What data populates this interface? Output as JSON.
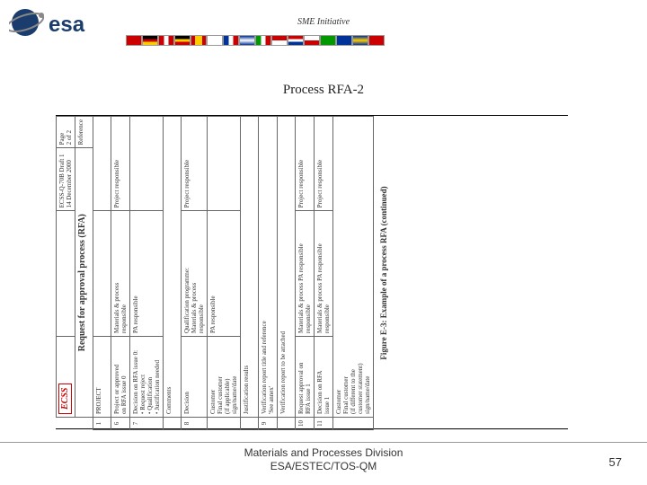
{
  "header": {
    "sme": "SME Initiative",
    "flags": [
      "#cc0000",
      "linear-gradient(#000 33%,#cc0000 33% 66%,#ffcc00 66%)",
      "linear-gradient(to right,#cc0000 33%,#fff 33% 66%,#cc0000 66%)",
      "linear-gradient(#000 33%,#ffcc00 33% 66%,#cc0000 66%)",
      "linear-gradient(to right,#cc0000 25%,#ffcc00 25% 75%,#cc0000 75%)",
      "#fff",
      "linear-gradient(to right,#003399 33%,#fff 33% 66%,#cc0000 66%)",
      "linear-gradient(#003399,#fff,#003399)",
      "linear-gradient(to right,#009900 33%,#fff 33% 66%,#cc0000 66%)",
      "linear-gradient(#cc0000 50%,#fff 50%)",
      "linear-gradient(#cc0000 33%,#fff 33% 66%,#003399 66%)",
      "linear-gradient(#fff 50%,#cc0000 50%)",
      "#009900",
      "#003399",
      "linear-gradient(#003399,#ffcc00,#003399)",
      "#cc0000"
    ]
  },
  "title": "Process RFA-2",
  "form": {
    "logo": "ECSS",
    "docref": "ECSS-Q-70B Draft 1\n14 December 2000",
    "page": "Page\n2 of 2",
    "heading": "Request for approval process (RFA)",
    "reference": "Reference",
    "rows": [
      {
        "n": "1",
        "left": "PROJECT",
        "right": ""
      },
      {
        "n": "6",
        "left": "Project or approved\non RFA issue 0",
        "mid": "Materials & process\nresponsible",
        "right": "Project responsible"
      },
      {
        "n": "7",
        "left": "Decision on RFA issue 0:\n• Request reject\n• Qualification\n• Justification needed",
        "mid": "PA responsible",
        "right": ""
      },
      {
        "n": "",
        "left": "Comments",
        "mid": "",
        "right": ""
      },
      {
        "n": "8",
        "left": "Decision",
        "mid": "Qualification programme:\nMaterials & process\nresponsible",
        "right": "Project responsible"
      },
      {
        "n": "",
        "left": "Customer\nFinal customer\n(if applicable)\nsign/name/date",
        "mid": "PA responsible",
        "right": ""
      },
      {
        "n": "",
        "left": "Justification results",
        "mid": "",
        "right": ""
      },
      {
        "n": "9",
        "left": "Verification report title and reference\n'See annex'",
        "mid": "",
        "right": ""
      },
      {
        "n": "",
        "left": "Verification report to be attached",
        "mid": "",
        "right": ""
      },
      {
        "n": "10",
        "left": "Request approval on\nRFA issue 1",
        "mid": "Materials & process PA responsible\nresponsible",
        "right": "Project responsible"
      },
      {
        "n": "11",
        "left": "Decision on RFA\nissue 1",
        "mid": "Materials & process PA responsible\nresponsible",
        "right": "Project responsible"
      },
      {
        "n": "",
        "left": "Customer\nFinal customer\n(if different to the\ncustomer statement)\nsign/name/date",
        "mid": "",
        "right": ""
      }
    ],
    "caption": "Figure E-3: Example of a process RFA (continued)"
  },
  "footer": {
    "line1": "Materials and Processes Division",
    "line2": "ESA/ESTEC/TOS-QM",
    "page": "57"
  }
}
